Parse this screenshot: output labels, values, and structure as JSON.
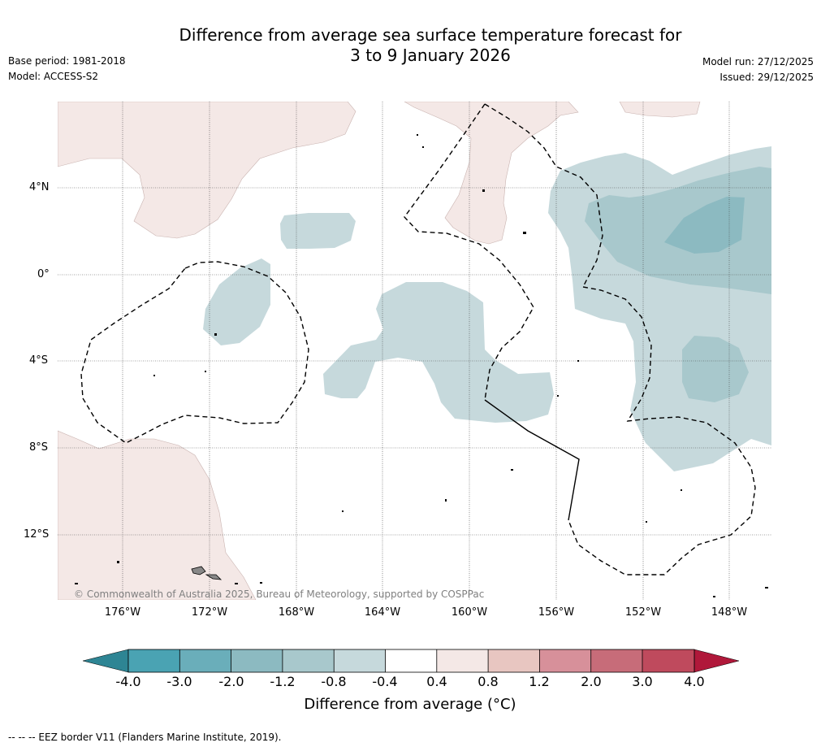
{
  "title": {
    "line1": "Difference from average sea surface temperature forecast for",
    "line2": "3 to 9 January 2026"
  },
  "meta": {
    "base_period": "Base period: 1981-2018",
    "model": "Model: ACCESS-S2",
    "model_run": "Model run: 27/12/2025",
    "issued": "Issued: 29/12/2025"
  },
  "axes": {
    "lat_labels": [
      "4°N",
      "0°",
      "4°S",
      "8°S",
      "12°S"
    ],
    "lon_labels": [
      "176°W",
      "172°W",
      "168°W",
      "164°W",
      "160°W",
      "156°W",
      "152°W",
      "148°W"
    ]
  },
  "copyright": "© Commonwealth of Australia 2025, Bureau of Meteorology, supported by COSPPac",
  "colorbar": {
    "ticks": [
      "-4.0",
      "-3.0",
      "-2.0",
      "-1.2",
      "-0.8",
      "-0.4",
      "0.4",
      "0.8",
      "1.2",
      "2.0",
      "3.0",
      "4.0"
    ],
    "colors": [
      "#4aa3b3",
      "#6aaeba",
      "#8cbac1",
      "#a8c8cc",
      "#c6d9dc",
      "#ffffff",
      "#f4e8e6",
      "#e8c6c1",
      "#d7909a",
      "#c76c79",
      "#bf4a5d"
    ],
    "min_color": "#2e8594",
    "max_color": "#b0183a",
    "label": "Difference from average (°C)"
  },
  "footnote": "--  --  -- EEZ border V11 (Flanders Marine Institute, 2019)."
}
